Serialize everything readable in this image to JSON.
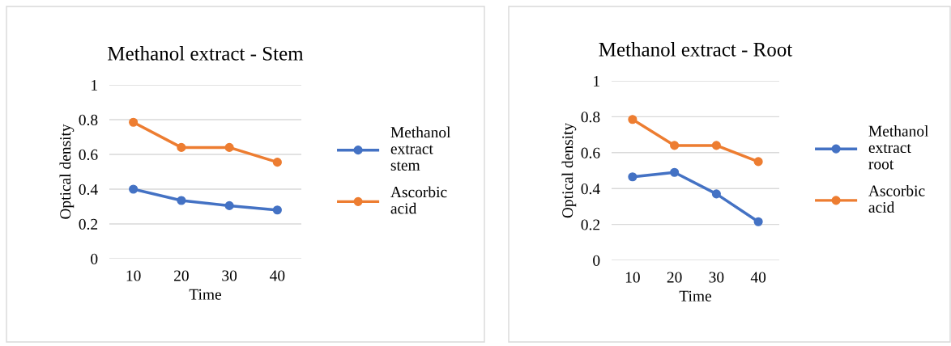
{
  "chart_data": [
    {
      "type": "line",
      "title": "Methanol extract - Stem",
      "xlabel": "Time",
      "ylabel": "Optical density",
      "categories": [
        "10",
        "20",
        "30",
        "40"
      ],
      "series": [
        {
          "name": "Methanol extract stem",
          "color": "#4472c4",
          "values": [
            0.4,
            0.335,
            0.305,
            0.28
          ]
        },
        {
          "name": "Ascorbic acid",
          "color": "#ed7d31",
          "values": [
            0.785,
            0.64,
            0.64,
            0.555
          ]
        }
      ],
      "ylim": [
        0,
        1
      ],
      "yticks": [
        0,
        0.2,
        0.4,
        0.6,
        0.8,
        1
      ],
      "grid": "y",
      "legend": "right",
      "marker": "circle",
      "line_style": "solid"
    },
    {
      "type": "line",
      "title": "Methanol extract - Root",
      "xlabel": "Time",
      "ylabel": "Optical density",
      "categories": [
        "10",
        "20",
        "30",
        "40"
      ],
      "series": [
        {
          "name": "Methanol extract root",
          "color": "#4472c4",
          "values": [
            0.465,
            0.49,
            0.37,
            0.215
          ]
        },
        {
          "name": "Ascorbic acid",
          "color": "#ed7d31",
          "values": [
            0.785,
            0.64,
            0.64,
            0.55
          ]
        }
      ],
      "ylim": [
        0,
        1
      ],
      "yticks": [
        0,
        0.2,
        0.4,
        0.6,
        0.8,
        1
      ],
      "grid": "y",
      "legend": "right",
      "marker": "circle",
      "line_style": "solid"
    }
  ]
}
